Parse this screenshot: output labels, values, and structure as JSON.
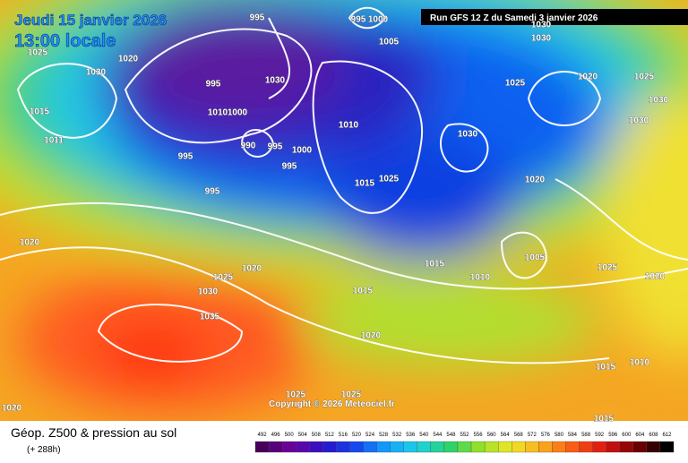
{
  "header": {
    "date": "Jeudi 15 janvier 2026",
    "time": "13:00 locale",
    "run": "Run GFS 12 Z du Samedi 3 janvier 2026"
  },
  "isobar_labels": [
    "995",
    "995",
    "1000",
    "1005",
    "1030",
    "1030",
    "1025",
    "1020",
    "1030",
    "995",
    "1030",
    "1010",
    "1000",
    "1015",
    "1011",
    "990",
    "995",
    "1000",
    "995",
    "995",
    "995",
    "1010",
    "1030",
    "1015",
    "1025",
    "1020",
    "1025",
    "1020",
    "1025",
    "1030",
    "1030",
    "1020",
    "1020",
    "1025",
    "1030",
    "1035",
    "1015",
    "1005",
    "1010",
    "1015",
    "1025",
    "1020",
    "1020",
    "1015",
    "1010",
    "1020",
    "1025",
    "1025",
    "1015"
  ],
  "copyright": "Copyright © 2026 Meteociel.fr",
  "footer": {
    "title": "Géop. Z500 & pression au sol",
    "lead": "(+ 288h)"
  },
  "scale": [
    492,
    496,
    500,
    504,
    508,
    512,
    516,
    520,
    524,
    528,
    532,
    536,
    540,
    544,
    548,
    552,
    556,
    560,
    564,
    568,
    572,
    576,
    580,
    584,
    588,
    592,
    596,
    600,
    604,
    608,
    612
  ]
}
